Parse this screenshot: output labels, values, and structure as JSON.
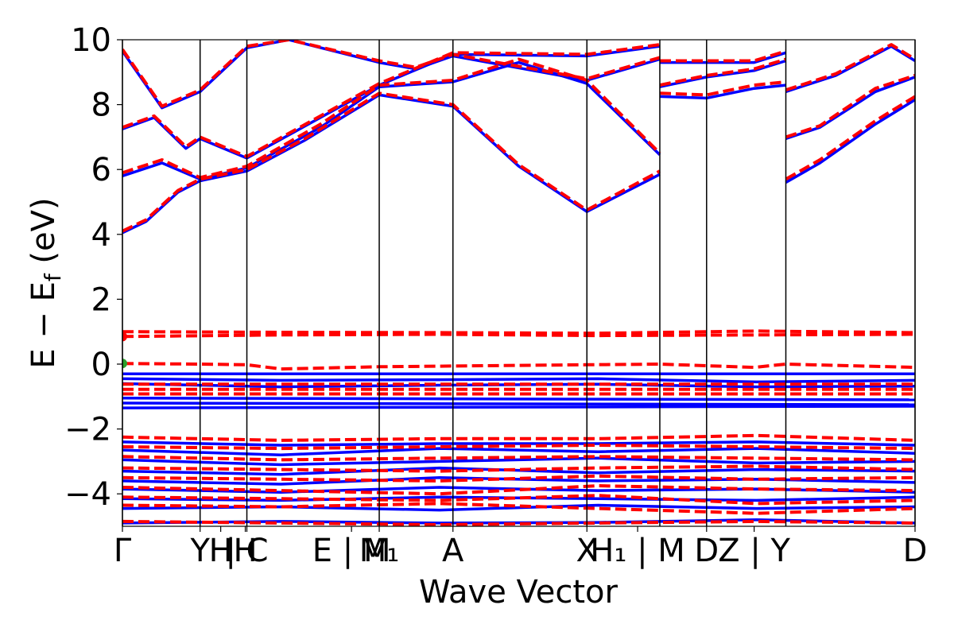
{
  "chart_data": {
    "type": "line",
    "xlabel": "Wave Vector",
    "ylabel": "E − E_f (eV)",
    "ylabel_parts": {
      "main": "E − E",
      "sub": "f",
      "unit": " (eV)"
    },
    "ylim": [
      -5,
      10
    ],
    "xlim": [
      0,
      1
    ],
    "grid": false,
    "y_ticks": [
      {
        "value": 10,
        "label": "10"
      },
      {
        "value": 8,
        "label": "8"
      },
      {
        "value": 6,
        "label": "6"
      },
      {
        "value": 4,
        "label": "4"
      },
      {
        "value": 2,
        "label": "2"
      },
      {
        "value": 0,
        "label": "0"
      },
      {
        "value": -2,
        "label": "−2"
      },
      {
        "value": -4,
        "label": "−4"
      }
    ],
    "kpoints": [
      {
        "x": 0.0,
        "label": "Γ"
      },
      {
        "x": 0.098,
        "label": "Y"
      },
      {
        "x": 0.124,
        "label": "H"
      },
      {
        "x": 0.155,
        "label": "H"
      },
      {
        "x": 0.157,
        "label": "| C"
      },
      {
        "x": 0.289,
        "label": "E | M"
      },
      {
        "x": 0.324,
        "label": "M₁"
      },
      {
        "x": 0.417,
        "label": "A"
      },
      {
        "x": 0.586,
        "label": "X"
      },
      {
        "x": 0.65,
        "label": "H₁ | M"
      },
      {
        "x": 0.737,
        "label": "D"
      },
      {
        "x": 0.797,
        "label": "Z | Y"
      },
      {
        "x": 1.0,
        "label": "D"
      }
    ],
    "boundaries": [
      0.0,
      0.098,
      0.157,
      0.324,
      0.417,
      0.586,
      0.678,
      0.737,
      0.837,
      1.0
    ],
    "discontinuities": [
      0.678,
      0.837
    ],
    "series": [
      {
        "style": "solid",
        "color": "#0000ff",
        "bands": [
          {
            "x": [
              0,
              0.03,
              0.07,
              0.098,
              0.157,
              0.23,
              0.324,
              0.417,
              0.5,
              0.586,
              0.678
            ],
            "y": [
              4.05,
              4.4,
              5.3,
              5.65,
              5.95,
              6.9,
              8.3,
              7.95,
              6.1,
              4.7,
              5.85
            ]
          },
          {
            "x": [
              0,
              0.05,
              0.098,
              0.157,
              0.25,
              0.324,
              0.417,
              0.5,
              0.586,
              0.678
            ],
            "y": [
              5.8,
              6.2,
              5.7,
              6.05,
              7.3,
              8.55,
              8.7,
              9.3,
              8.65,
              6.45
            ]
          },
          {
            "x": [
              0,
              0.04,
              0.08,
              0.098,
              0.157,
              0.324,
              0.417,
              0.586,
              0.678
            ],
            "y": [
              7.25,
              7.6,
              6.65,
              6.95,
              6.35,
              8.6,
              9.55,
              9.5,
              9.8
            ]
          },
          {
            "x": [
              0,
              0.05,
              0.098,
              0.157,
              0.21,
              0.324,
              0.37,
              0.417,
              0.586,
              0.678
            ],
            "y": [
              9.65,
              7.9,
              8.4,
              9.75,
              10,
              9.3,
              9.1,
              9.5,
              8.75,
              9.4
            ]
          },
          {
            "x": [
              0.678,
              0.737,
              0.797,
              0.837
            ],
            "y": [
              8.25,
              8.2,
              8.5,
              8.6
            ]
          },
          {
            "x": [
              0.678,
              0.737,
              0.797,
              0.837
            ],
            "y": [
              8.55,
              8.85,
              9.05,
              9.35
            ]
          },
          {
            "x": [
              0.678,
              0.737,
              0.797,
              0.837
            ],
            "y": [
              9.3,
              9.3,
              9.3,
              9.6
            ]
          },
          {
            "x": [
              0.837,
              0.88,
              0.95,
              1.0
            ],
            "y": [
              5.6,
              6.2,
              7.4,
              8.15
            ]
          },
          {
            "x": [
              0.837,
              0.88,
              0.95,
              1.0
            ],
            "y": [
              6.95,
              7.3,
              8.4,
              8.85
            ]
          },
          {
            "x": [
              0.837,
              0.9,
              0.97,
              1.0
            ],
            "y": [
              8.4,
              8.9,
              9.8,
              9.35
            ]
          },
          {
            "x": [
              0,
              1
            ],
            "y": [
              -0.3,
              -0.3
            ]
          },
          {
            "x": [
              0,
              0.2,
              0.4,
              0.6,
              0.8,
              1
            ],
            "y": [
              -0.45,
              -0.5,
              -0.48,
              -0.45,
              -0.55,
              -0.5
            ]
          },
          {
            "x": [
              0,
              0.2,
              0.4,
              0.6,
              0.8,
              1
            ],
            "y": [
              -0.6,
              -0.7,
              -0.65,
              -0.62,
              -0.7,
              -0.68
            ]
          },
          {
            "x": [
              0,
              1
            ],
            "y": [
              -1.05,
              -1.1
            ]
          },
          {
            "x": [
              0,
              1
            ],
            "y": [
              -1.2,
              -1.25
            ]
          },
          {
            "x": [
              0,
              1
            ],
            "y": [
              -1.35,
              -1.3
            ]
          },
          {
            "x": [
              0,
              0.2,
              0.4,
              0.6,
              0.8,
              1
            ],
            "y": [
              -2.4,
              -2.5,
              -2.45,
              -2.45,
              -2.4,
              -2.5
            ]
          },
          {
            "x": [
              0,
              0.2,
              0.4,
              0.6,
              0.8,
              1
            ],
            "y": [
              -2.65,
              -2.8,
              -2.6,
              -2.7,
              -2.6,
              -2.75
            ]
          },
          {
            "x": [
              0,
              0.2,
              0.4,
              0.6,
              0.8,
              1
            ],
            "y": [
              -2.95,
              -3.1,
              -3.0,
              -2.9,
              -3.05,
              -3.0
            ]
          },
          {
            "x": [
              0,
              0.2,
              0.4,
              0.6,
              0.8,
              1
            ],
            "y": [
              -3.3,
              -3.4,
              -3.2,
              -3.35,
              -3.25,
              -3.3
            ]
          },
          {
            "x": [
              0,
              0.2,
              0.4,
              0.6,
              0.8,
              1
            ],
            "y": [
              -3.6,
              -3.7,
              -3.5,
              -3.6,
              -3.55,
              -3.65
            ]
          },
          {
            "x": [
              0,
              0.2,
              0.4,
              0.6,
              0.8,
              1
            ],
            "y": [
              -3.85,
              -3.95,
              -3.8,
              -3.9,
              -3.85,
              -3.95
            ]
          },
          {
            "x": [
              0,
              0.2,
              0.4,
              0.6,
              0.8,
              1
            ],
            "y": [
              -4.15,
              -4.2,
              -4.1,
              -4.15,
              -4.2,
              -4.1
            ]
          },
          {
            "x": [
              0,
              0.2,
              0.4,
              0.6,
              0.8,
              1
            ],
            "y": [
              -4.45,
              -4.4,
              -4.5,
              -4.35,
              -4.45,
              -4.4
            ]
          },
          {
            "x": [
              0,
              0.2,
              0.4,
              0.6,
              0.8,
              1
            ],
            "y": [
              -4.9,
              -4.85,
              -4.9,
              -4.88,
              -4.8,
              -4.9
            ]
          }
        ]
      },
      {
        "style": "dashed",
        "color": "#ff0000",
        "bands": [
          {
            "x": [
              0,
              0.03,
              0.07,
              0.098,
              0.157,
              0.23,
              0.324,
              0.417,
              0.5,
              0.586,
              0.678
            ],
            "y": [
              4.1,
              4.45,
              5.35,
              5.7,
              6.0,
              6.95,
              8.35,
              8.0,
              6.15,
              4.75,
              5.95
            ]
          },
          {
            "x": [
              0,
              0.05,
              0.098,
              0.157,
              0.25,
              0.324,
              0.417,
              0.5,
              0.586,
              0.678
            ],
            "y": [
              5.9,
              6.3,
              5.75,
              6.1,
              7.4,
              8.6,
              8.75,
              9.4,
              8.75,
              6.5
            ]
          },
          {
            "x": [
              0,
              0.04,
              0.08,
              0.098,
              0.157,
              0.324,
              0.417,
              0.586,
              0.678
            ],
            "y": [
              7.3,
              7.65,
              6.7,
              7.0,
              6.4,
              8.65,
              9.6,
              9.55,
              9.85
            ]
          },
          {
            "x": [
              0,
              0.05,
              0.098,
              0.157,
              0.21,
              0.324,
              0.37,
              0.417,
              0.586,
              0.678
            ],
            "y": [
              9.7,
              7.95,
              8.45,
              9.8,
              10,
              9.35,
              9.15,
              9.55,
              8.8,
              9.45
            ]
          },
          {
            "x": [
              0.678,
              0.737,
              0.797,
              0.837
            ],
            "y": [
              8.35,
              8.3,
              8.6,
              8.7
            ]
          },
          {
            "x": [
              0.678,
              0.737,
              0.797,
              0.837
            ],
            "y": [
              8.6,
              8.9,
              9.1,
              9.4
            ]
          },
          {
            "x": [
              0.678,
              0.737,
              0.797,
              0.837
            ],
            "y": [
              9.35,
              9.35,
              9.35,
              9.65
            ]
          },
          {
            "x": [
              0.837,
              0.88,
              0.95,
              1.0
            ],
            "y": [
              5.7,
              6.3,
              7.5,
              8.25
            ]
          },
          {
            "x": [
              0.837,
              0.88,
              0.95,
              1.0
            ],
            "y": [
              7.0,
              7.35,
              8.5,
              8.9
            ]
          },
          {
            "x": [
              0.837,
              0.9,
              0.97,
              1.0
            ],
            "y": [
              8.45,
              8.95,
              9.85,
              9.4
            ]
          },
          {
            "x": [
              0,
              0.2,
              0.4,
              0.6,
              0.8,
              1
            ],
            "y": [
              1.0,
              0.98,
              0.97,
              0.95,
              1.02,
              0.97
            ]
          },
          {
            "x": [
              0,
              0.2,
              0.4,
              0.6,
              0.8,
              1
            ],
            "y": [
              0.85,
              0.9,
              0.92,
              0.88,
              0.9,
              0.92
            ]
          },
          {
            "x": [
              0,
              0.098,
              0.157,
              0.2,
              0.324,
              0.586,
              0.678,
              0.797,
              0.837,
              1
            ],
            "y": [
              0.02,
              0.0,
              -0.02,
              -0.15,
              -0.08,
              -0.02,
              0.0,
              -0.1,
              0.0,
              -0.1
            ]
          },
          {
            "x": [
              0,
              1
            ],
            "y": [
              -0.62,
              -0.62
            ]
          },
          {
            "x": [
              0,
              1
            ],
            "y": [
              -0.78,
              -0.78
            ]
          },
          {
            "x": [
              0,
              1
            ],
            "y": [
              -0.92,
              -0.92
            ]
          },
          {
            "x": [
              0,
              0.2,
              0.4,
              0.6,
              0.8,
              1
            ],
            "y": [
              -2.25,
              -2.35,
              -2.3,
              -2.3,
              -2.2,
              -2.35
            ]
          },
          {
            "x": [
              0,
              0.2,
              0.4,
              0.6,
              0.8,
              1
            ],
            "y": [
              -2.55,
              -2.6,
              -2.55,
              -2.5,
              -2.55,
              -2.6
            ]
          },
          {
            "x": [
              0,
              0.2,
              0.4,
              0.6,
              0.8,
              1
            ],
            "y": [
              -2.85,
              -2.95,
              -2.9,
              -2.85,
              -2.9,
              -2.95
            ]
          },
          {
            "x": [
              0,
              0.2,
              0.4,
              0.6,
              0.8,
              1
            ],
            "y": [
              -3.2,
              -3.25,
              -3.3,
              -3.2,
              -3.15,
              -3.25
            ]
          },
          {
            "x": [
              0,
              0.2,
              0.4,
              0.6,
              0.8,
              1
            ],
            "y": [
              -3.5,
              -3.55,
              -3.6,
              -3.45,
              -3.55,
              -3.5
            ]
          },
          {
            "x": [
              0,
              0.2,
              0.4,
              0.6,
              0.8,
              1
            ],
            "y": [
              -3.8,
              -3.9,
              -4.0,
              -3.75,
              -3.85,
              -3.9
            ]
          },
          {
            "x": [
              0,
              0.2,
              0.4,
              0.6,
              0.8,
              1
            ],
            "y": [
              -4.1,
              -4.15,
              -4.2,
              -4.05,
              -4.3,
              -4.2
            ]
          },
          {
            "x": [
              0,
              0.2,
              0.4,
              0.6,
              0.8,
              1
            ],
            "y": [
              -4.35,
              -4.4,
              -4.3,
              -4.45,
              -4.6,
              -4.45
            ]
          },
          {
            "x": [
              0,
              0.2,
              0.4,
              0.6,
              0.8,
              1
            ],
            "y": [
              -4.85,
              -4.9,
              -4.95,
              -4.9,
              -4.85,
              -4.9
            ]
          }
        ]
      }
    ],
    "markers": [
      {
        "x": 0,
        "y": 0.85,
        "color": "#ff0000"
      },
      {
        "x": 0,
        "y": 0.02,
        "color": "#2ca02c"
      }
    ]
  }
}
